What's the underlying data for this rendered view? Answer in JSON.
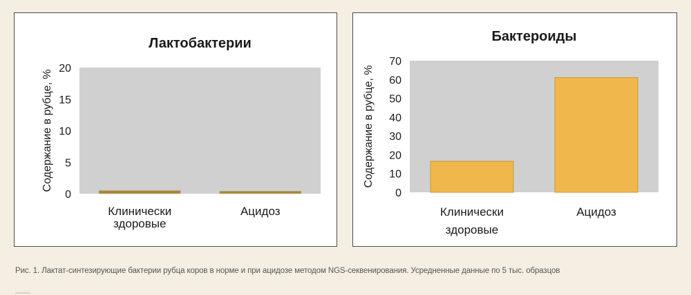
{
  "colors": {
    "plot_bg": "#d0d0d0",
    "left_bar": "#a8863d",
    "right_bar": "#f0b84c",
    "right_bar_border": "#c99a34",
    "page_bg": "#f4efe2"
  },
  "chart_data": [
    {
      "type": "bar",
      "title": "Лактобактерии",
      "ylabel": "Содержание  в рубце, %",
      "xlabel": "",
      "categories": [
        [
          "Клинически",
          "здоровые"
        ],
        [
          "Ацидоз"
        ]
      ],
      "values": [
        0.5,
        0.4
      ],
      "ylim": [
        0,
        20
      ],
      "yticks": [
        0,
        5,
        10,
        15,
        20
      ],
      "grid": false,
      "legend": "none"
    },
    {
      "type": "bar",
      "title": "Бактероиды",
      "ylabel": "Содержание  в рубце, %",
      "xlabel": "",
      "categories": [
        [
          "Клинически",
          "здоровые"
        ],
        [
          "Ацидоз"
        ]
      ],
      "values": [
        16.5,
        61
      ],
      "ylim": [
        0,
        70
      ],
      "yticks": [
        0,
        10,
        20,
        30,
        40,
        50,
        60,
        70
      ],
      "grid": false,
      "legend": "none"
    }
  ],
  "caption": "Рис. 1. Лактат-синтезирующие бактерии рубца коров в норме и при ацидозе методом NGS-секвенирования. Усредненные данные по 5 тыс. образцов"
}
